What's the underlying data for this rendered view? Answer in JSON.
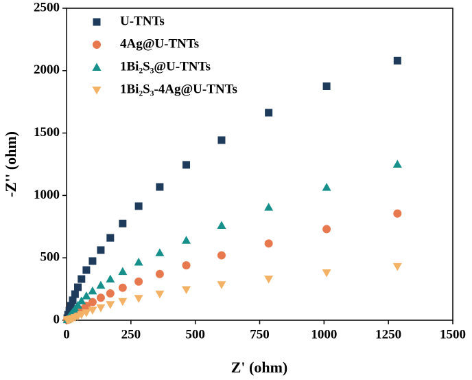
{
  "chart_data": {
    "type": "scatter",
    "x_label": "Z' (ohm)",
    "y_label": "-Z'' (ohm)",
    "xlim": [
      0,
      1500
    ],
    "xticks": [
      0,
      250,
      500,
      750,
      1000,
      1250,
      1500
    ],
    "ylim": [
      0,
      2500
    ],
    "yticks": [
      0,
      500,
      1000,
      1500,
      2000,
      2500
    ],
    "legend": "upper-left",
    "x": [
      1285,
      1010,
      785,
      602,
      465,
      362,
      280,
      218,
      170,
      133,
      101,
      77,
      58,
      44,
      33,
      24,
      17,
      11,
      6,
      3
    ],
    "series": [
      {
        "name": "U-TNTs",
        "color": "#1f3b5c",
        "marker": "square",
        "values": [
          2080,
          1875,
          1663,
          1443,
          1245,
          1068,
          914,
          775,
          660,
          562,
          474,
          402,
          330,
          264,
          209,
          160,
          116,
          77,
          44,
          17
        ]
      },
      {
        "name": "4Ag@U-TNTs",
        "color": "#e8784e",
        "marker": "circle",
        "values": [
          855,
          730,
          615,
          520,
          440,
          370,
          310,
          260,
          215,
          180,
          145,
          115,
          85,
          62,
          45,
          30,
          18,
          12,
          6,
          2
        ]
      },
      {
        "name": "1Bi₂S₃@U-TNTs",
        "color": "#17908c",
        "marker": "triangle-up",
        "values": [
          1250,
          1065,
          905,
          760,
          640,
          540,
          465,
          390,
          330,
          280,
          235,
          195,
          155,
          120,
          90,
          65,
          45,
          30,
          15,
          5
        ]
      },
      {
        "name": "1Bi₂S₃-4Ag@U-TNTs",
        "color": "#f4b266",
        "marker": "triangle-down",
        "values": [
          430,
          380,
          330,
          285,
          245,
          210,
          175,
          150,
          125,
          100,
          80,
          60,
          45,
          32,
          22,
          14,
          9,
          5,
          4,
          2
        ]
      }
    ]
  }
}
